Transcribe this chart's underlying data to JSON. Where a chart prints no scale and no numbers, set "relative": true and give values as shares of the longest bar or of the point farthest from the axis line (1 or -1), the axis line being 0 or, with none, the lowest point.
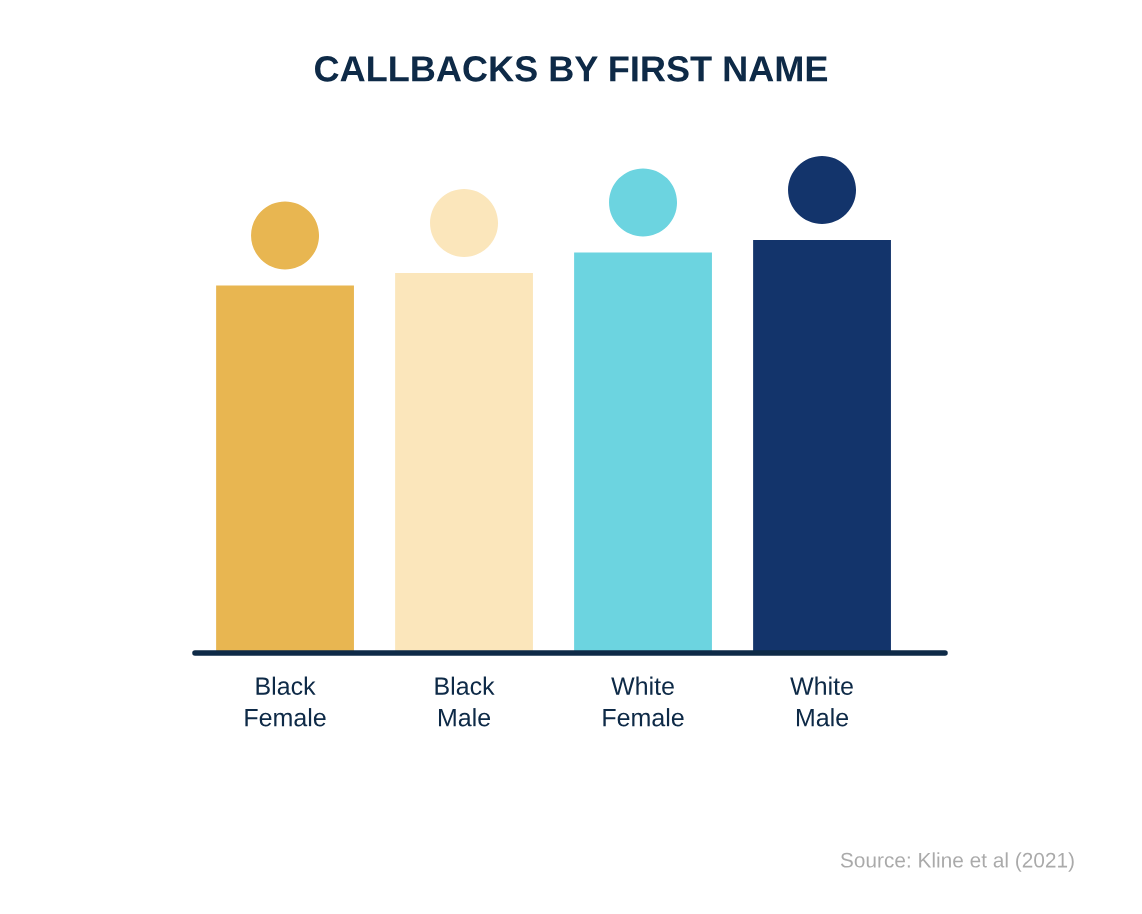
{
  "chart_data": {
    "type": "bar",
    "title": "CALLBACKS BY FIRST NAME",
    "categories": [
      "Black\nFemale",
      "Black\nMale",
      "White\nFemale",
      "White\nMale"
    ],
    "values": [
      0.89,
      0.92,
      0.97,
      1
    ],
    "colors": [
      "#e8b651",
      "#fbe6bb",
      "#6cd4e0",
      "#13346b"
    ],
    "relative": true,
    "grid": false,
    "tick_labels": "x",
    "annotations": [
      "Source: Kline et al (2021)"
    ]
  }
}
